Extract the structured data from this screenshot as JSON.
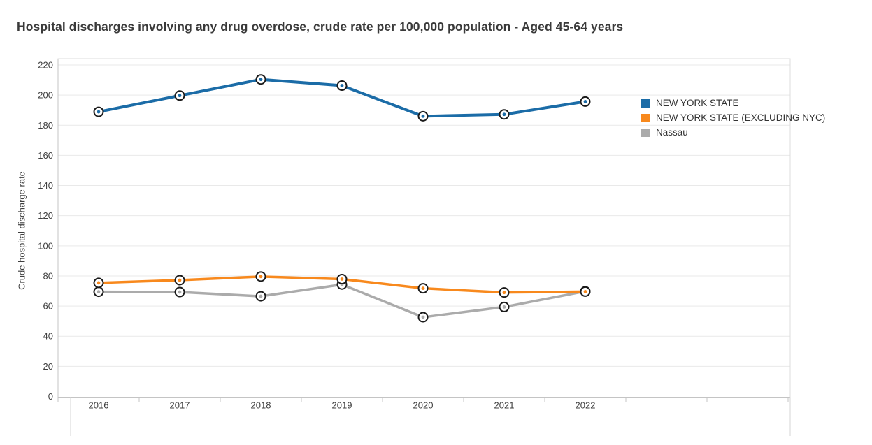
{
  "chart_data": {
    "type": "line",
    "title": "Hospital discharges involving any drug overdose, crude rate per 100,000 population - Aged 45-64 years",
    "ylabel": "Crude hospital discharge rate",
    "xlabel": "",
    "categories": [
      "2016",
      "2017",
      "2018",
      "2019",
      "2020",
      "2021",
      "2022"
    ],
    "series": [
      {
        "name": "NEW YORK STATE",
        "color": "#1b6ca7",
        "values": [
          188.9,
          199.7,
          210.4,
          206.3,
          186.0,
          187.2,
          195.7
        ]
      },
      {
        "name": "NEW YORK STATE (EXCLUDING NYC)",
        "color": "#f8891d",
        "values": [
          75.4,
          77.2,
          79.6,
          77.9,
          71.8,
          69.0,
          69.6
        ]
      },
      {
        "name": "Nassau",
        "color": "#ababab",
        "values": [
          69.5,
          69.3,
          66.5,
          74.3,
          52.6,
          59.4,
          69.8
        ]
      }
    ],
    "ylim": [
      0,
      220
    ],
    "yticks": [
      0,
      20,
      40,
      60,
      80,
      100,
      120,
      140,
      160,
      180,
      200,
      220
    ],
    "grid": "horizontal-only",
    "legend_position": "right",
    "marker_style": "black-ring-circle",
    "colors": {
      "grid_line": "#e9e9e9",
      "plot_border": "#dcdcdc",
      "axis_line": "#c4c4c4",
      "tick_text": "#404040",
      "title_text": "#3a3a3a",
      "marker_ring": "#1a1a1a",
      "marker_fill": "#ffffff"
    }
  }
}
